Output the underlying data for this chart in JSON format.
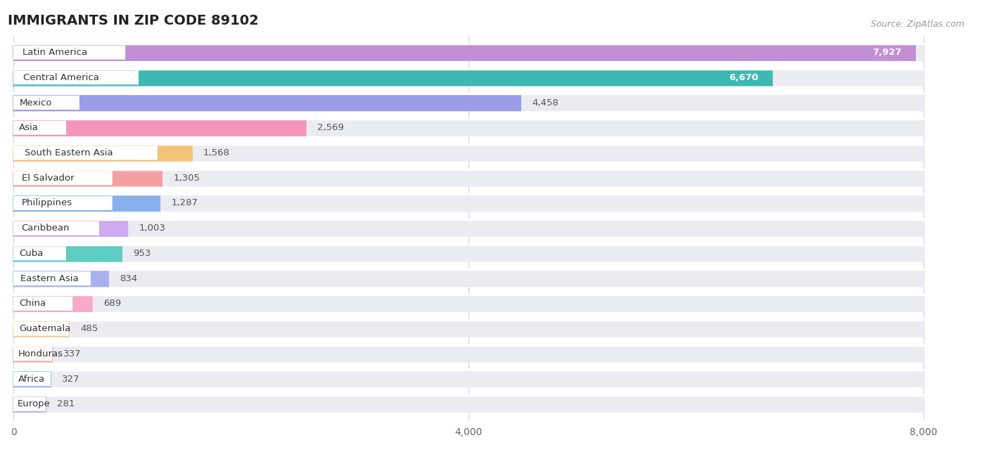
{
  "title": "IMMIGRANTS IN ZIP CODE 89102",
  "source": "Source: ZipAtlas.com",
  "categories": [
    "Latin America",
    "Central America",
    "Mexico",
    "Asia",
    "South Eastern Asia",
    "El Salvador",
    "Philippines",
    "Caribbean",
    "Cuba",
    "Eastern Asia",
    "China",
    "Guatemala",
    "Honduras",
    "Africa",
    "Europe"
  ],
  "values": [
    7927,
    6670,
    4458,
    2569,
    1568,
    1305,
    1287,
    1003,
    953,
    834,
    689,
    485,
    337,
    327,
    281
  ],
  "bar_colors": [
    "#c28fd4",
    "#3db8b3",
    "#9b9de8",
    "#f595b8",
    "#f5c27a",
    "#f5a0a0",
    "#88b0ed",
    "#ccaaee",
    "#5eccc0",
    "#a8b0ed",
    "#f5aac8",
    "#f5c898",
    "#f5a898",
    "#a8b8ed",
    "#c8b0dc"
  ],
  "xlim": [
    0,
    8000
  ],
  "xticks": [
    0,
    4000,
    8000
  ],
  "background_color": "#ffffff",
  "bar_bg_color": "#ebebf2",
  "title_fontsize": 14,
  "bar_height": 0.68
}
